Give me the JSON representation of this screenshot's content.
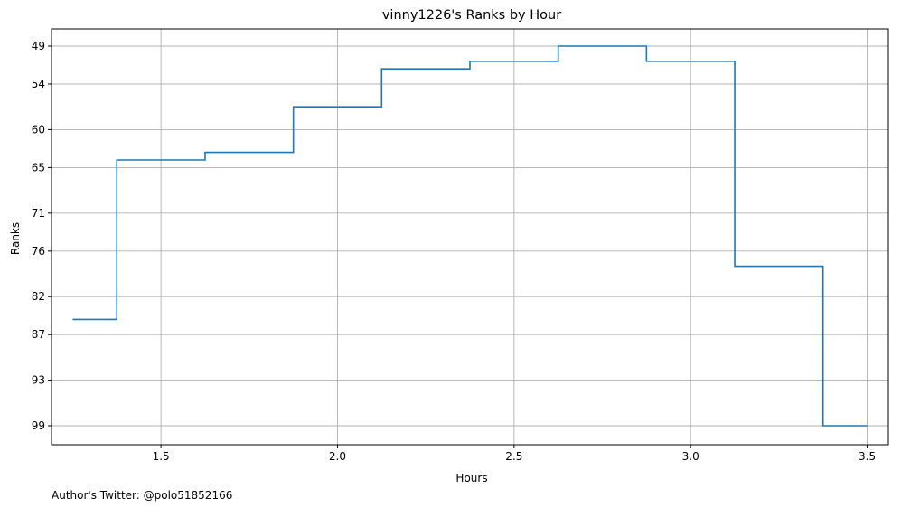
{
  "chart_data": {
    "type": "line",
    "step": "mid",
    "title": "vinny1226's Ranks by Hour",
    "xlabel": "Hours",
    "ylabel": "Ranks",
    "xlim": [
      1.19,
      3.56
    ],
    "ylim": [
      49,
      99
    ],
    "y_inverted": true,
    "x_ticks": [
      1.5,
      2.0,
      2.5,
      3.0,
      3.5
    ],
    "x_tick_labels": [
      "1.5",
      "2.0",
      "2.5",
      "3.0",
      "3.5"
    ],
    "y_ticks": [
      49,
      54,
      60,
      65,
      71,
      76,
      82,
      87,
      93,
      99
    ],
    "y_tick_labels": [
      "49",
      "54",
      "60",
      "65",
      "71",
      "76",
      "82",
      "87",
      "93",
      "99"
    ],
    "grid": true,
    "series": [
      {
        "color": "#1f77b4",
        "points": [
          {
            "x": 1.25,
            "y": 85
          },
          {
            "x": 1.5,
            "y": 64
          },
          {
            "x": 1.75,
            "y": 63
          },
          {
            "x": 2.0,
            "y": 57
          },
          {
            "x": 2.25,
            "y": 52
          },
          {
            "x": 2.5,
            "y": 51
          },
          {
            "x": 2.75,
            "y": 49
          },
          {
            "x": 3.0,
            "y": 51
          },
          {
            "x": 3.25,
            "y": 78
          },
          {
            "x": 3.5,
            "y": 99
          }
        ]
      }
    ]
  },
  "footnote": "Author's Twitter: @polo51852166"
}
